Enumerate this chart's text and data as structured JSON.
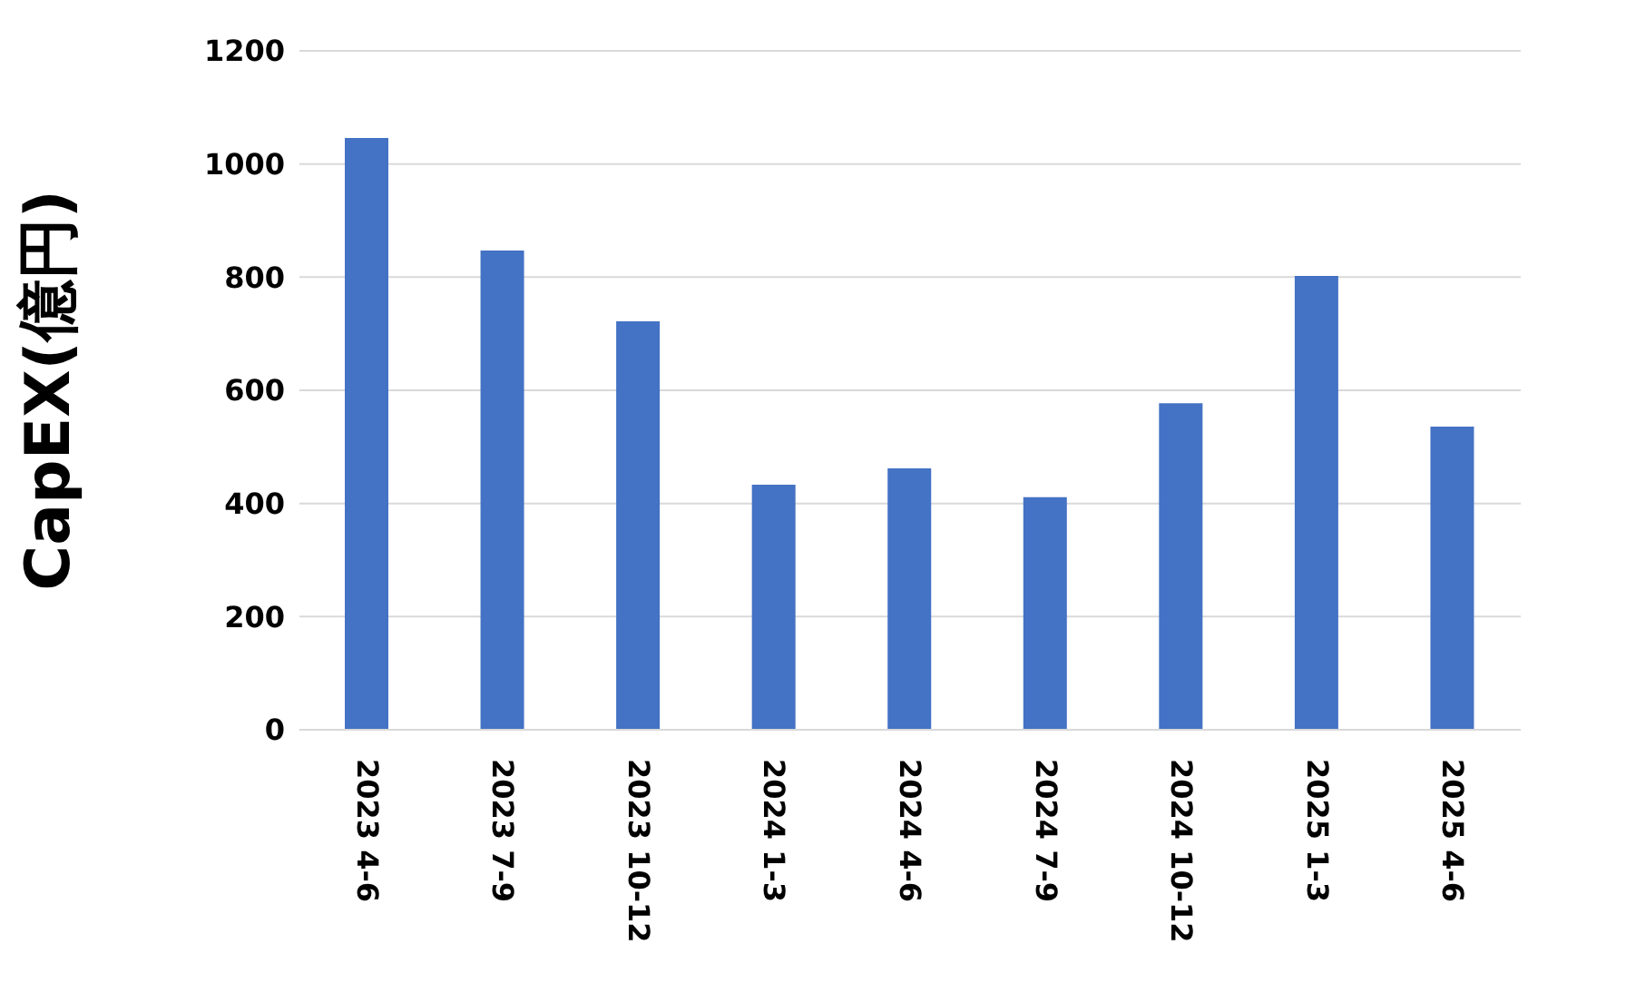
{
  "chart_data": {
    "type": "bar",
    "ylabel": "CapEX(億円)",
    "categories": [
      "2023 4-6",
      "2023 7-9",
      "2023 10-12",
      "2024 1-3",
      "2024 4-6",
      "2024 7-9",
      "2024 10-12",
      "2025 1-3",
      "2025 4-6"
    ],
    "values": [
      1046,
      847,
      722,
      433,
      462,
      411,
      577,
      802,
      536
    ],
    "color": "#4472c4",
    "ylim": [
      0,
      1200
    ],
    "yticks": [
      0,
      200,
      400,
      600,
      800,
      1000,
      1200
    ],
    "grid": "y",
    "legend": false
  }
}
